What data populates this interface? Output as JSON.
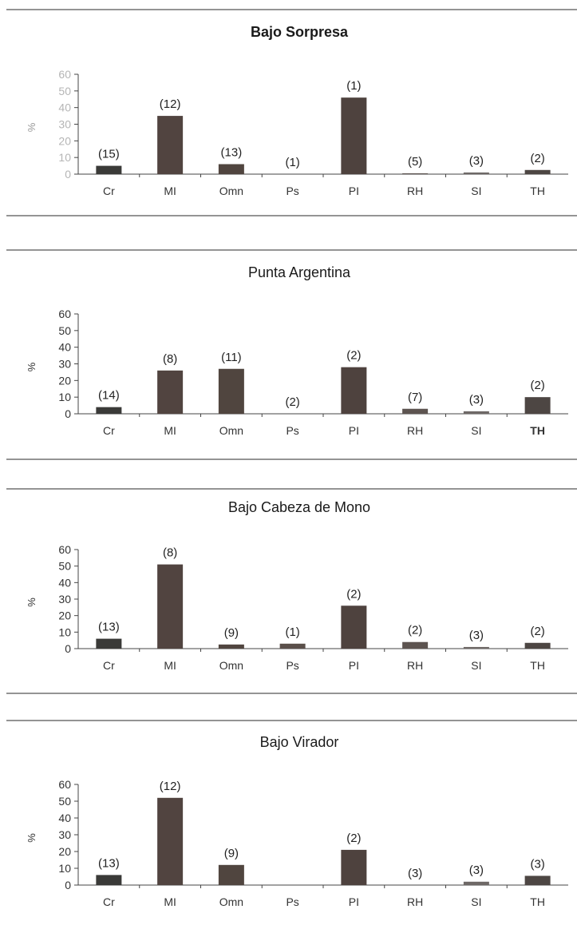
{
  "chart_data": [
    {
      "type": "bar",
      "title": "Bajo Sorpresa",
      "ylabel": "%",
      "ylim": [
        0,
        60
      ],
      "yticks": [
        0,
        10,
        20,
        30,
        40,
        50,
        60
      ],
      "categories": [
        "Cr",
        "MI",
        "Omn",
        "Ps",
        "PI",
        "RH",
        "SI",
        "TH"
      ],
      "values": [
        5,
        35,
        6,
        0,
        46,
        0.5,
        1,
        2.5
      ],
      "annotations": [
        "(15)",
        "(12)",
        "(13)",
        "(1)",
        "(1)",
        "(5)",
        "(3)",
        "(2)"
      ]
    },
    {
      "type": "bar",
      "title": "Punta Argentina",
      "ylabel": "%",
      "ylim": [
        0,
        60
      ],
      "yticks": [
        0,
        10,
        20,
        30,
        40,
        50,
        60
      ],
      "categories": [
        "Cr",
        "MI",
        "Omn",
        "Ps",
        "PI",
        "RH",
        "SI",
        "TH"
      ],
      "values": [
        4,
        26,
        27,
        0,
        28,
        3,
        1.5,
        10
      ],
      "annotations": [
        "(14)",
        "(8)",
        "(11)",
        "(2)",
        "(2)",
        "(7)",
        "(3)",
        "(2)"
      ]
    },
    {
      "type": "bar",
      "title": "Bajo Cabeza de Mono",
      "ylabel": "%",
      "ylim": [
        0,
        60
      ],
      "yticks": [
        0,
        10,
        20,
        30,
        40,
        50,
        60
      ],
      "categories": [
        "Cr",
        "MI",
        "Omn",
        "Ps",
        "PI",
        "RH",
        "SI",
        "TH"
      ],
      "values": [
        6,
        51,
        2.5,
        3,
        26,
        4,
        1,
        3.5
      ],
      "annotations": [
        "(13)",
        "(8)",
        "(9)",
        "(1)",
        "(2)",
        "(2)",
        "(3)",
        "(2)"
      ]
    },
    {
      "type": "bar",
      "title": "Bajo Virador",
      "ylabel": "%",
      "ylim": [
        0,
        60
      ],
      "yticks": [
        0,
        10,
        20,
        30,
        40,
        50,
        60
      ],
      "categories": [
        "Cr",
        "MI",
        "Omn",
        "Ps",
        "PI",
        "RH",
        "SI",
        "TH"
      ],
      "values": [
        6,
        52,
        12,
        0,
        21,
        0,
        2,
        5.5
      ],
      "annotations": [
        "(13)",
        "(12)",
        "(9)",
        "",
        "(2)",
        "(3)",
        "(3)",
        "(3)"
      ]
    }
  ]
}
